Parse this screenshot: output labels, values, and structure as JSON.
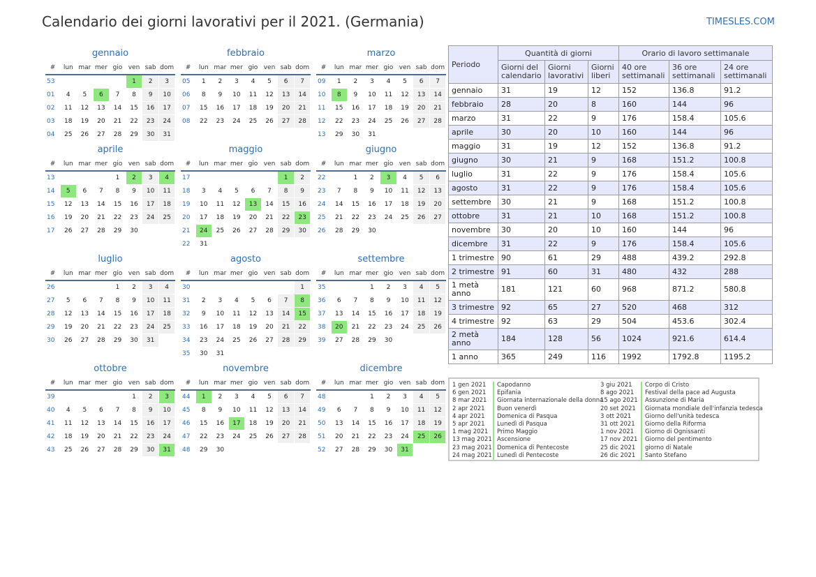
{
  "title": "Calendario dei giorni lavorativi per il 2021. (Germania)",
  "site": "TIMESLES.COM",
  "colors": {
    "accent": "#2f6fb8",
    "holiday": "#8ee87e",
    "weekend": "#f0f0f0",
    "header_bg": "#e6e9fb"
  },
  "calendar_header": [
    "#",
    "lun",
    "mar",
    "mer",
    "gio",
    "ven",
    "sab",
    "dom"
  ],
  "months": [
    {
      "name": "gennaio",
      "weeks": [
        {
          "wk": "53",
          "days": [
            "",
            "",
            "",
            "",
            "1",
            "2",
            "3"
          ]
        },
        {
          "wk": "01",
          "days": [
            "4",
            "5",
            "6",
            "7",
            "8",
            "9",
            "10"
          ]
        },
        {
          "wk": "02",
          "days": [
            "11",
            "12",
            "13",
            "14",
            "15",
            "16",
            "17"
          ]
        },
        {
          "wk": "03",
          "days": [
            "18",
            "19",
            "20",
            "21",
            "22",
            "23",
            "24"
          ]
        },
        {
          "wk": "04",
          "days": [
            "25",
            "26",
            "27",
            "28",
            "29",
            "30",
            "31"
          ]
        }
      ],
      "holidays": [
        "1",
        "6"
      ]
    },
    {
      "name": "febbraio",
      "weeks": [
        {
          "wk": "05",
          "days": [
            "1",
            "2",
            "3",
            "4",
            "5",
            "6",
            "7"
          ]
        },
        {
          "wk": "06",
          "days": [
            "8",
            "9",
            "10",
            "11",
            "12",
            "13",
            "14"
          ]
        },
        {
          "wk": "07",
          "days": [
            "15",
            "16",
            "17",
            "18",
            "19",
            "20",
            "21"
          ]
        },
        {
          "wk": "08",
          "days": [
            "22",
            "23",
            "24",
            "25",
            "26",
            "27",
            "28"
          ]
        }
      ],
      "holidays": []
    },
    {
      "name": "marzo",
      "weeks": [
        {
          "wk": "09",
          "days": [
            "1",
            "2",
            "3",
            "4",
            "5",
            "6",
            "7"
          ]
        },
        {
          "wk": "10",
          "days": [
            "8",
            "9",
            "10",
            "11",
            "12",
            "13",
            "14"
          ]
        },
        {
          "wk": "11",
          "days": [
            "15",
            "16",
            "17",
            "18",
            "19",
            "20",
            "21"
          ]
        },
        {
          "wk": "12",
          "days": [
            "22",
            "23",
            "24",
            "25",
            "26",
            "27",
            "28"
          ]
        },
        {
          "wk": "13",
          "days": [
            "29",
            "30",
            "31",
            "",
            "",
            "",
            ""
          ]
        }
      ],
      "holidays": [
        "8"
      ]
    },
    {
      "name": "aprile",
      "weeks": [
        {
          "wk": "13",
          "days": [
            "",
            "",
            "",
            "1",
            "2",
            "3",
            "4"
          ]
        },
        {
          "wk": "14",
          "days": [
            "5",
            "6",
            "7",
            "8",
            "9",
            "10",
            "11"
          ]
        },
        {
          "wk": "15",
          "days": [
            "12",
            "13",
            "14",
            "15",
            "16",
            "17",
            "18"
          ]
        },
        {
          "wk": "16",
          "days": [
            "19",
            "20",
            "21",
            "22",
            "23",
            "24",
            "25"
          ]
        },
        {
          "wk": "17",
          "days": [
            "26",
            "27",
            "28",
            "29",
            "30",
            "",
            ""
          ]
        }
      ],
      "holidays": [
        "2",
        "4",
        "5"
      ]
    },
    {
      "name": "maggio",
      "weeks": [
        {
          "wk": "17",
          "days": [
            "",
            "",
            "",
            "",
            "",
            "1",
            "2"
          ]
        },
        {
          "wk": "18",
          "days": [
            "3",
            "4",
            "5",
            "6",
            "7",
            "8",
            "9"
          ]
        },
        {
          "wk": "19",
          "days": [
            "10",
            "11",
            "12",
            "13",
            "14",
            "15",
            "16"
          ]
        },
        {
          "wk": "20",
          "days": [
            "17",
            "18",
            "19",
            "20",
            "21",
            "22",
            "23"
          ]
        },
        {
          "wk": "21",
          "days": [
            "24",
            "25",
            "26",
            "27",
            "28",
            "29",
            "30"
          ]
        },
        {
          "wk": "22",
          "days": [
            "31",
            "",
            "",
            "",
            "",
            "",
            ""
          ]
        }
      ],
      "holidays": [
        "1",
        "13",
        "23",
        "24"
      ]
    },
    {
      "name": "giugno",
      "weeks": [
        {
          "wk": "22",
          "days": [
            "",
            "1",
            "2",
            "3",
            "4",
            "5",
            "6"
          ]
        },
        {
          "wk": "23",
          "days": [
            "7",
            "8",
            "9",
            "10",
            "11",
            "12",
            "13"
          ]
        },
        {
          "wk": "24",
          "days": [
            "14",
            "15",
            "16",
            "17",
            "18",
            "19",
            "20"
          ]
        },
        {
          "wk": "25",
          "days": [
            "21",
            "22",
            "23",
            "24",
            "25",
            "26",
            "27"
          ]
        },
        {
          "wk": "26",
          "days": [
            "28",
            "29",
            "30",
            "",
            "",
            "",
            ""
          ]
        }
      ],
      "holidays": [
        "3"
      ]
    },
    {
      "name": "luglio",
      "weeks": [
        {
          "wk": "26",
          "days": [
            "",
            "",
            "",
            "1",
            "2",
            "3",
            "4"
          ]
        },
        {
          "wk": "27",
          "days": [
            "5",
            "6",
            "7",
            "8",
            "9",
            "10",
            "11"
          ]
        },
        {
          "wk": "28",
          "days": [
            "12",
            "13",
            "14",
            "15",
            "16",
            "17",
            "18"
          ]
        },
        {
          "wk": "29",
          "days": [
            "19",
            "20",
            "21",
            "22",
            "23",
            "24",
            "25"
          ]
        },
        {
          "wk": "30",
          "days": [
            "26",
            "27",
            "28",
            "29",
            "30",
            "31",
            ""
          ]
        }
      ],
      "holidays": []
    },
    {
      "name": "agosto",
      "weeks": [
        {
          "wk": "30",
          "days": [
            "",
            "",
            "",
            "",
            "",
            "",
            "1"
          ]
        },
        {
          "wk": "31",
          "days": [
            "2",
            "3",
            "4",
            "5",
            "6",
            "7",
            "8"
          ]
        },
        {
          "wk": "32",
          "days": [
            "9",
            "10",
            "11",
            "12",
            "13",
            "14",
            "15"
          ]
        },
        {
          "wk": "33",
          "days": [
            "16",
            "17",
            "18",
            "19",
            "20",
            "21",
            "22"
          ]
        },
        {
          "wk": "34",
          "days": [
            "23",
            "24",
            "25",
            "26",
            "27",
            "28",
            "29"
          ]
        },
        {
          "wk": "35",
          "days": [
            "30",
            "31",
            "",
            "",
            "",
            "",
            ""
          ]
        }
      ],
      "holidays": [
        "8",
        "15"
      ]
    },
    {
      "name": "settembre",
      "weeks": [
        {
          "wk": "35",
          "days": [
            "",
            "",
            "1",
            "2",
            "3",
            "4",
            "5"
          ]
        },
        {
          "wk": "36",
          "days": [
            "6",
            "7",
            "8",
            "9",
            "10",
            "11",
            "12"
          ]
        },
        {
          "wk": "37",
          "days": [
            "13",
            "14",
            "15",
            "16",
            "17",
            "18",
            "19"
          ]
        },
        {
          "wk": "38",
          "days": [
            "20",
            "21",
            "22",
            "23",
            "24",
            "25",
            "26"
          ]
        },
        {
          "wk": "39",
          "days": [
            "27",
            "28",
            "29",
            "30",
            "",
            "",
            ""
          ]
        }
      ],
      "holidays": [
        "20"
      ]
    },
    {
      "name": "ottobre",
      "weeks": [
        {
          "wk": "39",
          "days": [
            "",
            "",
            "",
            "",
            "1",
            "2",
            "3"
          ]
        },
        {
          "wk": "40",
          "days": [
            "4",
            "5",
            "6",
            "7",
            "8",
            "9",
            "10"
          ]
        },
        {
          "wk": "41",
          "days": [
            "11",
            "12",
            "13",
            "14",
            "15",
            "16",
            "17"
          ]
        },
        {
          "wk": "42",
          "days": [
            "18",
            "19",
            "20",
            "21",
            "22",
            "23",
            "24"
          ]
        },
        {
          "wk": "43",
          "days": [
            "25",
            "26",
            "27",
            "28",
            "29",
            "30",
            "31"
          ]
        }
      ],
      "holidays": [
        "3",
        "31"
      ]
    },
    {
      "name": "novembre",
      "weeks": [
        {
          "wk": "44",
          "days": [
            "1",
            "2",
            "3",
            "4",
            "5",
            "6",
            "7"
          ]
        },
        {
          "wk": "45",
          "days": [
            "8",
            "9",
            "10",
            "11",
            "12",
            "13",
            "14"
          ]
        },
        {
          "wk": "46",
          "days": [
            "15",
            "16",
            "17",
            "18",
            "19",
            "20",
            "21"
          ]
        },
        {
          "wk": "47",
          "days": [
            "22",
            "23",
            "24",
            "25",
            "26",
            "27",
            "28"
          ]
        },
        {
          "wk": "48",
          "days": [
            "29",
            "30",
            "",
            "",
            "",
            "",
            ""
          ]
        }
      ],
      "holidays": [
        "1",
        "17"
      ]
    },
    {
      "name": "dicembre",
      "weeks": [
        {
          "wk": "48",
          "days": [
            "",
            "",
            "1",
            "2",
            "3",
            "4",
            "5"
          ]
        },
        {
          "wk": "49",
          "days": [
            "6",
            "7",
            "8",
            "9",
            "10",
            "11",
            "12"
          ]
        },
        {
          "wk": "50",
          "days": [
            "13",
            "14",
            "15",
            "16",
            "17",
            "18",
            "19"
          ]
        },
        {
          "wk": "51",
          "days": [
            "20",
            "21",
            "22",
            "23",
            "24",
            "25",
            "26"
          ]
        },
        {
          "wk": "52",
          "days": [
            "27",
            "28",
            "29",
            "30",
            "31",
            "",
            ""
          ]
        }
      ],
      "holidays": [
        "25",
        "26",
        "31"
      ]
    }
  ],
  "stats": {
    "header": {
      "period": "Periodo",
      "days_group": "Quantità di giorni",
      "hours_group": "Orario di lavoro settimanale",
      "calendar_days": "Giorni del calendario",
      "working_days": "Giorni lavorativi",
      "free_days": "Giorni liberi",
      "h40": "40 ore settimanali",
      "h36": "36 ore settimanali",
      "h24": "24 ore settimanali"
    },
    "rows": [
      [
        "gennaio",
        "31",
        "19",
        "12",
        "152",
        "136.8",
        "91.2"
      ],
      [
        "febbraio",
        "28",
        "20",
        "8",
        "160",
        "144",
        "96"
      ],
      [
        "marzo",
        "31",
        "22",
        "9",
        "176",
        "158.4",
        "105.6"
      ],
      [
        "aprile",
        "30",
        "20",
        "10",
        "160",
        "144",
        "96"
      ],
      [
        "maggio",
        "31",
        "19",
        "12",
        "152",
        "136.8",
        "91.2"
      ],
      [
        "giugno",
        "30",
        "21",
        "9",
        "168",
        "151.2",
        "100.8"
      ],
      [
        "luglio",
        "31",
        "22",
        "9",
        "176",
        "158.4",
        "105.6"
      ],
      [
        "agosto",
        "31",
        "22",
        "9",
        "176",
        "158.4",
        "105.6"
      ],
      [
        "settembre",
        "30",
        "21",
        "9",
        "168",
        "151.2",
        "100.8"
      ],
      [
        "ottobre",
        "31",
        "21",
        "10",
        "168",
        "151.2",
        "100.8"
      ],
      [
        "novembre",
        "30",
        "20",
        "10",
        "160",
        "144",
        "96"
      ],
      [
        "dicembre",
        "31",
        "22",
        "9",
        "176",
        "158.4",
        "105.6"
      ],
      [
        "1 trimestre",
        "90",
        "61",
        "29",
        "488",
        "439.2",
        "292.8"
      ],
      [
        "2 trimestre",
        "91",
        "60",
        "31",
        "480",
        "432",
        "288"
      ],
      [
        "1 metà anno",
        "181",
        "121",
        "60",
        "968",
        "871.2",
        "580.8"
      ],
      [
        "3 trimestre",
        "92",
        "65",
        "27",
        "520",
        "468",
        "312"
      ],
      [
        "4 trimestre",
        "92",
        "63",
        "29",
        "504",
        "453.6",
        "302.4"
      ],
      [
        "2 metà anno",
        "184",
        "128",
        "56",
        "1024",
        "921.6",
        "614.4"
      ],
      [
        "1 anno",
        "365",
        "249",
        "116",
        "1992",
        "1792.8",
        "1195.2"
      ]
    ]
  },
  "holidays_list": {
    "left": [
      {
        "date": "1 gen 2021",
        "name": "Capodanno"
      },
      {
        "date": "6 gen 2021",
        "name": "Epifania"
      },
      {
        "date": "8 mar 2021",
        "name": "Giornata internazionale della donna"
      },
      {
        "date": "2 apr 2021",
        "name": "Buon venerdì"
      },
      {
        "date": "4 apr 2021",
        "name": "Domenica di Pasqua"
      },
      {
        "date": "5 apr 2021",
        "name": "Lunedì di Pasqua"
      },
      {
        "date": "1 mag 2021",
        "name": "Primo Maggio"
      },
      {
        "date": "13 mag 2021",
        "name": "Ascensione"
      },
      {
        "date": "23 mag 2021",
        "name": "Domenica di Pentecoste"
      },
      {
        "date": "24 mag 2021",
        "name": "Lunedì di Pentecoste"
      }
    ],
    "right": [
      {
        "date": "3 giu 2021",
        "name": "Corpo di Cristo"
      },
      {
        "date": "8 ago 2021",
        "name": "Festival della pace ad Augusta"
      },
      {
        "date": "15 ago 2021",
        "name": "Assunzione di Maria"
      },
      {
        "date": "20 set 2021",
        "name": "Giornata mondiale dell'infanzia tedesca"
      },
      {
        "date": "3 ott 2021",
        "name": "Giorno dell'unità tedesca"
      },
      {
        "date": "31 ott 2021",
        "name": "Giorno della Riforma"
      },
      {
        "date": "1 nov 2021",
        "name": "Giorno di Ognissanti"
      },
      {
        "date": "17 nov 2021",
        "name": "Giorno del pentimento"
      },
      {
        "date": "25 dic 2021",
        "name": "giorno di Natale"
      },
      {
        "date": "26 dic 2021",
        "name": "Santo Stefano"
      }
    ]
  }
}
